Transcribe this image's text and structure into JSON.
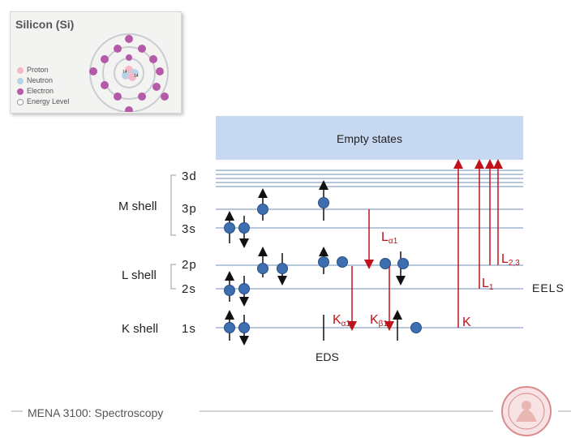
{
  "silicon_card": {
    "title": "Silicon (Si)",
    "nucleus_line1": "14",
    "nucleus_line2": "14",
    "legend": [
      {
        "label": "Proton",
        "color": "#f4b8c6"
      },
      {
        "label": "Neutron",
        "color": "#b9d3e6"
      },
      {
        "label": "Electron",
        "color": "#b45aa8"
      },
      {
        "label": "Energy Level",
        "color": "#ffffff"
      }
    ]
  },
  "diagram": {
    "empty_states": "Empty states",
    "shells": [
      {
        "name": "M shell"
      },
      {
        "name": "L shell"
      },
      {
        "name": "K shell"
      }
    ],
    "orbitals": [
      "3d",
      "3p",
      "3s",
      "2p",
      "2s",
      "1s"
    ],
    "transitions": {
      "l_alpha_main": "L",
      "l_alpha_sub": "α1",
      "l23_main": "L",
      "l23_sub": "2,3",
      "l1_main": "L",
      "l1_sub": "1",
      "k_alpha_main": "K",
      "k_alpha_sub": "α1",
      "k_beta_main": "K",
      "k_beta_sub": "β1",
      "k": "K"
    },
    "eds": "EDS",
    "eels": "EELS",
    "colors": {
      "empty_band": "#c6d9f0",
      "level_line": "#6f8fb5",
      "arrow_red": "#c0121a",
      "electron": "#3d6eb0"
    }
  },
  "footer": {
    "text": "MENA 3100: Spectroscopy"
  }
}
